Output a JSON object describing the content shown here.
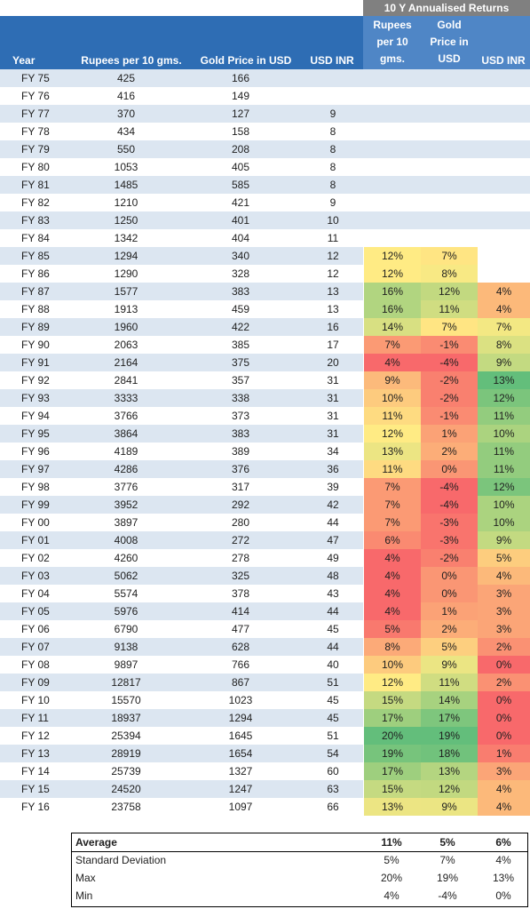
{
  "header": {
    "group_title": "10 Y Annualised Returns",
    "col_year": "Year",
    "col_rupees": "Rupees per 10 gms.",
    "col_gold_usd": "Gold Price in USD",
    "col_usdinr": "USD INR",
    "ret_rupees": "Rupees per 10 gms.",
    "ret_gold": "Gold Price in USD",
    "ret_usdinr": "USD INR"
  },
  "colors": {
    "header_blue": "#2e6db4",
    "header_blue_light": "#4f86c6",
    "header_gray": "#808080",
    "stripe": "#dce6f1",
    "heat_low": "#f8696b",
    "heat_mid": "#ffeb84",
    "heat_high": "#63be7b"
  },
  "rows": [
    {
      "year": "FY 75",
      "rupees": "425",
      "gold": "166",
      "usdinr": "",
      "r1": "",
      "r2": "",
      "r3": ""
    },
    {
      "year": "FY 76",
      "rupees": "416",
      "gold": "149",
      "usdinr": "",
      "r1": "",
      "r2": "",
      "r3": ""
    },
    {
      "year": "FY 77",
      "rupees": "370",
      "gold": "127",
      "usdinr": "9",
      "r1": "",
      "r2": "",
      "r3": ""
    },
    {
      "year": "FY 78",
      "rupees": "434",
      "gold": "158",
      "usdinr": "8",
      "r1": "",
      "r2": "",
      "r3": ""
    },
    {
      "year": "FY 79",
      "rupees": "550",
      "gold": "208",
      "usdinr": "8",
      "r1": "",
      "r2": "",
      "r3": ""
    },
    {
      "year": "FY 80",
      "rupees": "1053",
      "gold": "405",
      "usdinr": "8",
      "r1": "",
      "r2": "",
      "r3": ""
    },
    {
      "year": "FY 81",
      "rupees": "1485",
      "gold": "585",
      "usdinr": "8",
      "r1": "",
      "r2": "",
      "r3": ""
    },
    {
      "year": "FY 82",
      "rupees": "1210",
      "gold": "421",
      "usdinr": "9",
      "r1": "",
      "r2": "",
      "r3": ""
    },
    {
      "year": "FY 83",
      "rupees": "1250",
      "gold": "401",
      "usdinr": "10",
      "r1": "",
      "r2": "",
      "r3": ""
    },
    {
      "year": "FY 84",
      "rupees": "1342",
      "gold": "404",
      "usdinr": "11",
      "r1": "",
      "r2": "",
      "r3": ""
    },
    {
      "year": "FY 85",
      "rupees": "1294",
      "gold": "340",
      "usdinr": "12",
      "r1": "12%",
      "r2": "7%",
      "r3": ""
    },
    {
      "year": "FY 86",
      "rupees": "1290",
      "gold": "328",
      "usdinr": "12",
      "r1": "12%",
      "r2": "8%",
      "r3": ""
    },
    {
      "year": "FY 87",
      "rupees": "1577",
      "gold": "383",
      "usdinr": "13",
      "r1": "16%",
      "r2": "12%",
      "r3": "4%"
    },
    {
      "year": "FY 88",
      "rupees": "1913",
      "gold": "459",
      "usdinr": "13",
      "r1": "16%",
      "r2": "11%",
      "r3": "4%"
    },
    {
      "year": "FY 89",
      "rupees": "1960",
      "gold": "422",
      "usdinr": "16",
      "r1": "14%",
      "r2": "7%",
      "r3": "7%"
    },
    {
      "year": "FY 90",
      "rupees": "2063",
      "gold": "385",
      "usdinr": "17",
      "r1": "7%",
      "r2": "-1%",
      "r3": "8%"
    },
    {
      "year": "FY 91",
      "rupees": "2164",
      "gold": "375",
      "usdinr": "20",
      "r1": "4%",
      "r2": "-4%",
      "r3": "9%"
    },
    {
      "year": "FY 92",
      "rupees": "2841",
      "gold": "357",
      "usdinr": "31",
      "r1": "9%",
      "r2": "-2%",
      "r3": "13%"
    },
    {
      "year": "FY 93",
      "rupees": "3333",
      "gold": "338",
      "usdinr": "31",
      "r1": "10%",
      "r2": "-2%",
      "r3": "12%"
    },
    {
      "year": "FY 94",
      "rupees": "3766",
      "gold": "373",
      "usdinr": "31",
      "r1": "11%",
      "r2": "-1%",
      "r3": "11%"
    },
    {
      "year": "FY 95",
      "rupees": "3864",
      "gold": "383",
      "usdinr": "31",
      "r1": "12%",
      "r2": "1%",
      "r3": "10%"
    },
    {
      "year": "FY 96",
      "rupees": "4189",
      "gold": "389",
      "usdinr": "34",
      "r1": "13%",
      "r2": "2%",
      "r3": "11%"
    },
    {
      "year": "FY 97",
      "rupees": "4286",
      "gold": "376",
      "usdinr": "36",
      "r1": "11%",
      "r2": "0%",
      "r3": "11%"
    },
    {
      "year": "FY 98",
      "rupees": "3776",
      "gold": "317",
      "usdinr": "39",
      "r1": "7%",
      "r2": "-4%",
      "r3": "12%"
    },
    {
      "year": "FY 99",
      "rupees": "3952",
      "gold": "292",
      "usdinr": "42",
      "r1": "7%",
      "r2": "-4%",
      "r3": "10%"
    },
    {
      "year": "FY 00",
      "rupees": "3897",
      "gold": "280",
      "usdinr": "44",
      "r1": "7%",
      "r2": "-3%",
      "r3": "10%"
    },
    {
      "year": "FY 01",
      "rupees": "4008",
      "gold": "272",
      "usdinr": "47",
      "r1": "6%",
      "r2": "-3%",
      "r3": "9%"
    },
    {
      "year": "FY 02",
      "rupees": "4260",
      "gold": "278",
      "usdinr": "49",
      "r1": "4%",
      "r2": "-2%",
      "r3": "5%"
    },
    {
      "year": "FY 03",
      "rupees": "5062",
      "gold": "325",
      "usdinr": "48",
      "r1": "4%",
      "r2": "0%",
      "r3": "4%"
    },
    {
      "year": "FY 04",
      "rupees": "5574",
      "gold": "378",
      "usdinr": "43",
      "r1": "4%",
      "r2": "0%",
      "r3": "3%"
    },
    {
      "year": "FY 05",
      "rupees": "5976",
      "gold": "414",
      "usdinr": "44",
      "r1": "4%",
      "r2": "1%",
      "r3": "3%"
    },
    {
      "year": "FY 06",
      "rupees": "6790",
      "gold": "477",
      "usdinr": "45",
      "r1": "5%",
      "r2": "2%",
      "r3": "3%"
    },
    {
      "year": "FY 07",
      "rupees": "9138",
      "gold": "628",
      "usdinr": "44",
      "r1": "8%",
      "r2": "5%",
      "r3": "2%"
    },
    {
      "year": "FY 08",
      "rupees": "9897",
      "gold": "766",
      "usdinr": "40",
      "r1": "10%",
      "r2": "9%",
      "r3": "0%"
    },
    {
      "year": "FY 09",
      "rupees": "12817",
      "gold": "867",
      "usdinr": "51",
      "r1": "12%",
      "r2": "11%",
      "r3": "2%"
    },
    {
      "year": "FY 10",
      "rupees": "15570",
      "gold": "1023",
      "usdinr": "45",
      "r1": "15%",
      "r2": "14%",
      "r3": "0%"
    },
    {
      "year": "FY 11",
      "rupees": "18937",
      "gold": "1294",
      "usdinr": "45",
      "r1": "17%",
      "r2": "17%",
      "r3": "0%"
    },
    {
      "year": "FY 12",
      "rupees": "25394",
      "gold": "1645",
      "usdinr": "51",
      "r1": "20%",
      "r2": "19%",
      "r3": "0%"
    },
    {
      "year": "FY 13",
      "rupees": "28919",
      "gold": "1654",
      "usdinr": "54",
      "r1": "19%",
      "r2": "18%",
      "r3": "1%"
    },
    {
      "year": "FY 14",
      "rupees": "25739",
      "gold": "1327",
      "usdinr": "60",
      "r1": "17%",
      "r2": "13%",
      "r3": "3%"
    },
    {
      "year": "FY 15",
      "rupees": "24520",
      "gold": "1247",
      "usdinr": "63",
      "r1": "15%",
      "r2": "12%",
      "r3": "4%"
    },
    {
      "year": "FY 16",
      "rupees": "23758",
      "gold": "1097",
      "usdinr": "66",
      "r1": "13%",
      "r2": "9%",
      "r3": "4%"
    }
  ],
  "stats": [
    {
      "label": "Average",
      "r1": "11%",
      "r2": "5%",
      "r3": "6%",
      "bold": true
    },
    {
      "label": "Standard Deviation",
      "r1": "5%",
      "r2": "7%",
      "r3": "4%",
      "bold": false
    },
    {
      "label": "Max",
      "r1": "20%",
      "r2": "19%",
      "r3": "13%",
      "bold": false
    },
    {
      "label": "Min",
      "r1": "4%",
      "r2": "-4%",
      "r3": "0%",
      "bold": false
    }
  ]
}
